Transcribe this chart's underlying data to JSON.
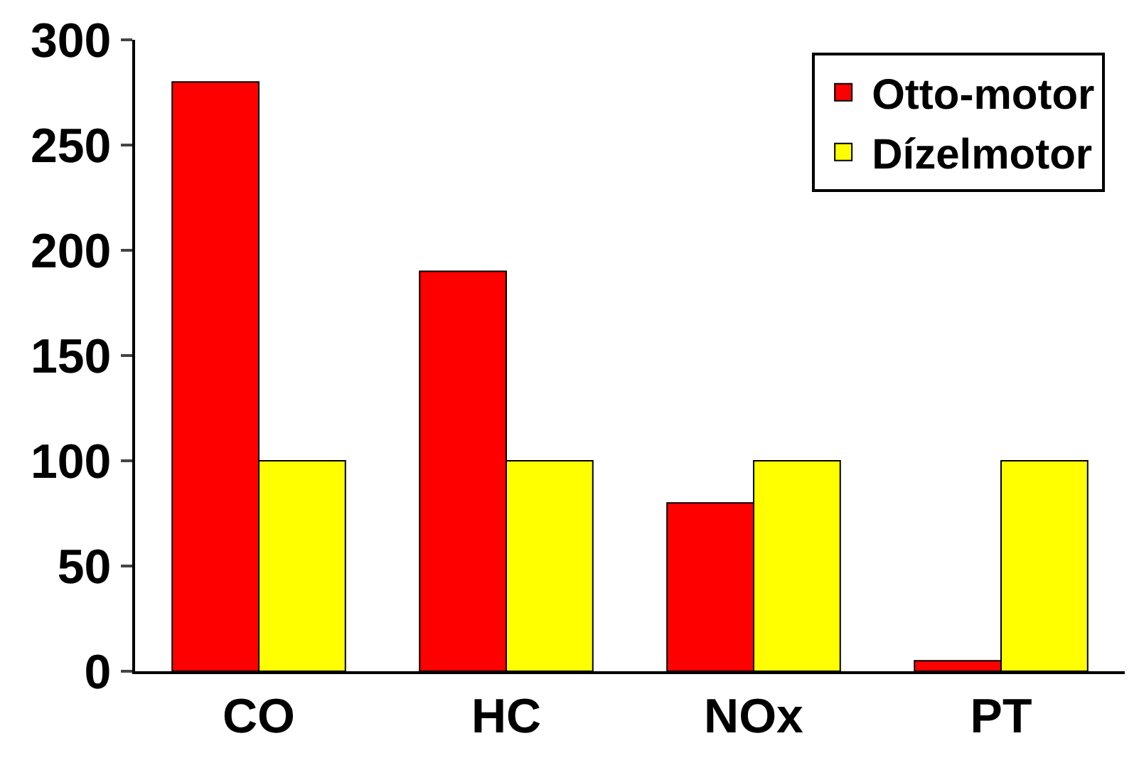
{
  "chart_data": {
    "type": "bar",
    "categories": [
      "CO",
      "HC",
      "NOx",
      "PT"
    ],
    "series": [
      {
        "name": "Otto-motor",
        "color": "#ff0000",
        "values": [
          280,
          190,
          80,
          5
        ]
      },
      {
        "name": "Dízelmotor",
        "color": "#ffff00",
        "values": [
          100,
          100,
          100,
          100
        ]
      }
    ],
    "ylim": [
      0,
      300
    ],
    "yticks": [
      0,
      50,
      100,
      150,
      200,
      250,
      300
    ],
    "legend": "top right"
  }
}
